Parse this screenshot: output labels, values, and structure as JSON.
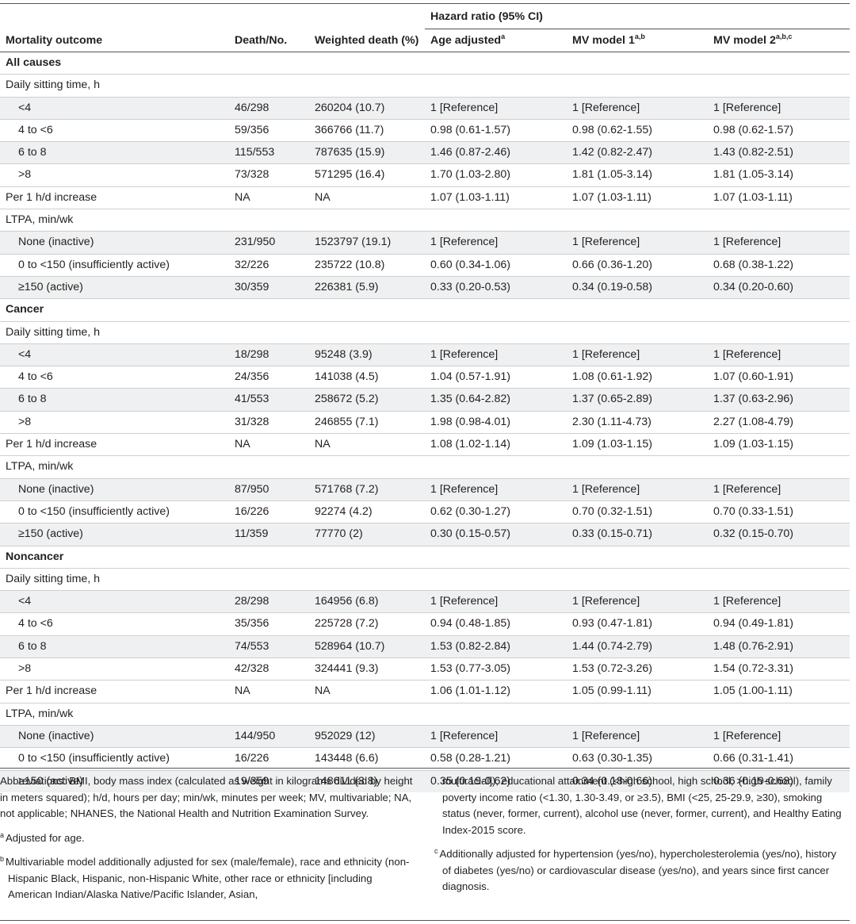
{
  "header": {
    "mortality_outcome": "Mortality outcome",
    "death_no": "Death/No.",
    "weighted_death": "Weighted death (%)",
    "hazard_ratio": "Hazard ratio (95% CI)",
    "age_adjusted": "Age adjusted",
    "age_adjusted_sup": "a",
    "mv1": "MV model 1",
    "mv1_sup": "a,b",
    "mv2": "MV model 2",
    "mv2_sup": "a,b,c"
  },
  "sections": [
    {
      "title": "All causes",
      "sitting_label": "Daily sitting time, h",
      "sitting": [
        {
          "label": "<4",
          "deaths": "46/298",
          "weighted": "260204 (10.7)",
          "age": "1 [Reference]",
          "mv1": "1 [Reference]",
          "mv2": "1 [Reference]"
        },
        {
          "label": "4 to <6",
          "deaths": "59/356",
          "weighted": "366766 (11.7)",
          "age": "0.98 (0.61-1.57)",
          "mv1": "0.98 (0.62-1.55)",
          "mv2": "0.98 (0.62-1.57)"
        },
        {
          "label": "6 to 8",
          "deaths": "115/553",
          "weighted": "787635 (15.9)",
          "age": "1.46 (0.87-2.46)",
          "mv1": "1.42 (0.82-2.47)",
          "mv2": "1.43 (0.82-2.51)"
        },
        {
          "label": ">8",
          "deaths": "73/328",
          "weighted": "571295 (16.4)",
          "age": "1.70 (1.03-2.80)",
          "mv1": "1.81 (1.05-3.14)",
          "mv2": "1.81 (1.05-3.14)"
        }
      ],
      "per_hour": {
        "label": "Per 1 h/d increase",
        "deaths": "NA",
        "weighted": "NA",
        "age": "1.07 (1.03-1.11)",
        "mv1": "1.07 (1.03-1.11)",
        "mv2": "1.07 (1.03-1.11)"
      },
      "ltpa_label": "LTPA, min/wk",
      "ltpa": [
        {
          "label": "None (inactive)",
          "deaths": "231/950",
          "weighted": "1523797 (19.1)",
          "age": "1 [Reference]",
          "mv1": "1 [Reference]",
          "mv2": "1 [Reference]"
        },
        {
          "label": "0 to <150 (insufficiently active)",
          "deaths": "32/226",
          "weighted": "235722 (10.8)",
          "age": "0.60 (0.34-1.06)",
          "mv1": "0.66 (0.36-1.20)",
          "mv2": "0.68 (0.38-1.22)"
        },
        {
          "label": "≥150 (active)",
          "deaths": "30/359",
          "weighted": "226381 (5.9)",
          "age": "0.33 (0.20-0.53)",
          "mv1": "0.34 (0.19-0.58)",
          "mv2": "0.34 (0.20-0.60)"
        }
      ]
    },
    {
      "title": "Cancer",
      "sitting_label": "Daily sitting time, h",
      "sitting": [
        {
          "label": "<4",
          "deaths": "18/298",
          "weighted": "95248 (3.9)",
          "age": "1 [Reference]",
          "mv1": "1 [Reference]",
          "mv2": "1 [Reference]"
        },
        {
          "label": "4 to <6",
          "deaths": "24/356",
          "weighted": "141038 (4.5)",
          "age": "1.04 (0.57-1.91)",
          "mv1": "1.08 (0.61-1.92)",
          "mv2": "1.07 (0.60-1.91)"
        },
        {
          "label": "6 to 8",
          "deaths": "41/553",
          "weighted": "258672 (5.2)",
          "age": "1.35 (0.64-2.82)",
          "mv1": "1.37 (0.65-2.89)",
          "mv2": "1.37 (0.63-2.96)"
        },
        {
          "label": ">8",
          "deaths": "31/328",
          "weighted": "246855 (7.1)",
          "age": "1.98 (0.98-4.01)",
          "mv1": "2.30 (1.11-4.73)",
          "mv2": "2.27 (1.08-4.79)"
        }
      ],
      "per_hour": {
        "label": "Per 1 h/d increase",
        "deaths": "NA",
        "weighted": "NA",
        "age": "1.08 (1.02-1.14)",
        "mv1": "1.09 (1.03-1.15)",
        "mv2": "1.09 (1.03-1.15)"
      },
      "ltpa_label": "LTPA, min/wk",
      "ltpa": [
        {
          "label": "None (inactive)",
          "deaths": "87/950",
          "weighted": "571768 (7.2)",
          "age": "1 [Reference]",
          "mv1": "1 [Reference]",
          "mv2": "1 [Reference]"
        },
        {
          "label": "0 to <150 (insufficiently active)",
          "deaths": "16/226",
          "weighted": "92274 (4.2)",
          "age": "0.62 (0.30-1.27)",
          "mv1": "0.70 (0.32-1.51)",
          "mv2": "0.70 (0.33-1.51)"
        },
        {
          "label": "≥150 (active)",
          "deaths": "11/359",
          "weighted": "77770 (2)",
          "age": "0.30 (0.15-0.57)",
          "mv1": "0.33 (0.15-0.71)",
          "mv2": "0.32 (0.15-0.70)"
        }
      ]
    },
    {
      "title": "Noncancer",
      "sitting_label": "Daily sitting time, h",
      "sitting": [
        {
          "label": "<4",
          "deaths": "28/298",
          "weighted": "164956 (6.8)",
          "age": "1 [Reference]",
          "mv1": "1 [Reference]",
          "mv2": "1 [Reference]"
        },
        {
          "label": "4 to <6",
          "deaths": "35/356",
          "weighted": "225728 (7.2)",
          "age": "0.94 (0.48-1.85)",
          "mv1": "0.93 (0.47-1.81)",
          "mv2": "0.94 (0.49-1.81)"
        },
        {
          "label": "6 to 8",
          "deaths": "74/553",
          "weighted": "528964 (10.7)",
          "age": "1.53 (0.82-2.84)",
          "mv1": "1.44 (0.74-2.79)",
          "mv2": "1.48 (0.76-2.91)"
        },
        {
          "label": ">8",
          "deaths": "42/328",
          "weighted": "324441 (9.3)",
          "age": "1.53 (0.77-3.05)",
          "mv1": "1.53 (0.72-3.26)",
          "mv2": "1.54 (0.72-3.31)"
        }
      ],
      "per_hour": {
        "label": "Per 1 h/d increase",
        "deaths": "NA",
        "weighted": "NA",
        "age": "1.06 (1.01-1.12)",
        "mv1": "1.05 (0.99-1.11)",
        "mv2": "1.05 (1.00-1.11)"
      },
      "ltpa_label": "LTPA, min/wk",
      "ltpa": [
        {
          "label": "None (inactive)",
          "deaths": "144/950",
          "weighted": "952029 (12)",
          "age": "1 [Reference]",
          "mv1": "1 [Reference]",
          "mv2": "1 [Reference]"
        },
        {
          "label": "0 to <150 (insufficiently active)",
          "deaths": "16/226",
          "weighted": "143448 (6.6)",
          "age": "0.58 (0.28-1.21)",
          "mv1": "0.63 (0.30-1.35)",
          "mv2": "0.66 (0.31-1.41)"
        },
        {
          "label": "≥150 (active)",
          "deaths": "19/359",
          "weighted": "148611 (3.8)",
          "age": "0.35 (0.19-0.62)",
          "mv1": "0.34 (0.18-0.66)",
          "mv2": "0.36 (0.19-0.68)"
        }
      ]
    }
  ],
  "notes": {
    "abbreviations": "Abbreviations: BMI, body mass index (calculated as weight in kilograms divided by height in meters squared); h/d, hours per day; min/wk, minutes per week; MV, multivariable; NA, not applicable; NHANES, the National Health and Nutrition Examination Survey.",
    "footnote_a_mark": "a",
    "footnote_a": "Adjusted for age.",
    "footnote_b_mark": "b",
    "footnote_b": "Multivariable model additionally adjusted for sex (male/female), race and ethnicity (non-Hispanic Black, Hispanic, non-Hispanic White, other race or ethnicity [including American Indian/Alaska Native/Pacific Islander, Asian,",
    "footnote_b_cont": "multiracial]), educational attainment (<high school, high school, >high school), family poverty income ratio (<1.30, 1.30-3.49, or ≥3.5), BMI (<25, 25-29.9, ≥30), smoking status (never, former, current), alcohol use (never, former, current), and Healthy Eating Index-2015 score.",
    "footnote_c_mark": "c",
    "footnote_c": "Additionally adjusted for hypertension (yes/no), hypercholesterolemia (yes/no), history of diabetes (yes/no) or cardiovascular disease (yes/no), and years since first cancer diagnosis."
  }
}
